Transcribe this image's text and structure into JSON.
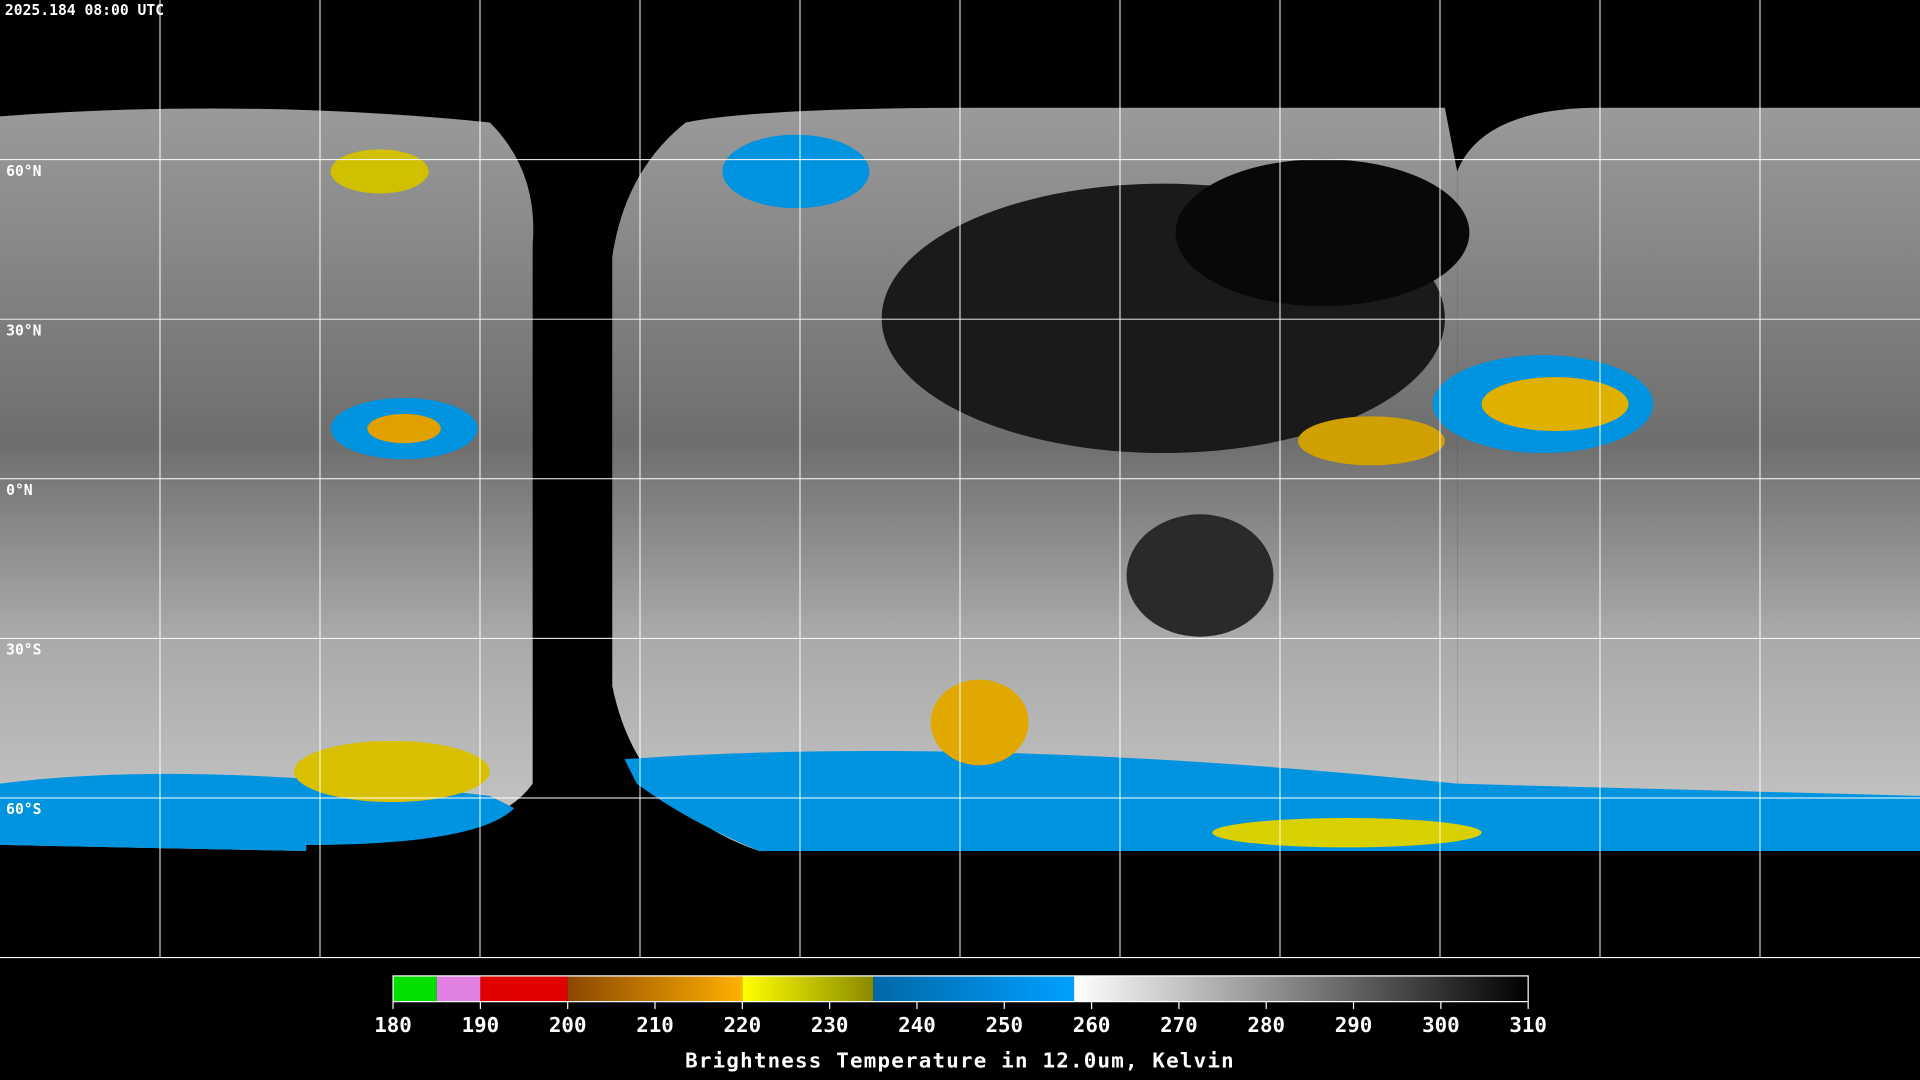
{
  "header": {
    "timestamp": "2025.184 08:00 UTC"
  },
  "map": {
    "latlim": [
      90,
      -90
    ],
    "latitudes": [
      {
        "value": 60,
        "label": "60°N"
      },
      {
        "value": 30,
        "label": "30°N"
      },
      {
        "value": 0,
        "label": "0°N"
      },
      {
        "value": -30,
        "label": "30°S"
      },
      {
        "value": -60,
        "label": "60°S"
      }
    ]
  },
  "colorbar": {
    "title": "Brightness Temperature in 12.0um, Kelvin",
    "range": [
      180,
      310
    ],
    "ticks": [
      180,
      190,
      200,
      210,
      220,
      230,
      240,
      250,
      260,
      270,
      280,
      290,
      300,
      310
    ],
    "segments": [
      {
        "from": 180,
        "to": 185,
        "colors": [
          "#00e000"
        ]
      },
      {
        "from": 185,
        "to": 190,
        "colors": [
          "#e080e0"
        ]
      },
      {
        "from": 190,
        "to": 200,
        "colors": [
          "#e00000"
        ]
      },
      {
        "from": 200,
        "to": 220,
        "colors": [
          "#8a4800",
          "#ffb000"
        ]
      },
      {
        "from": 220,
        "to": 235,
        "colors": [
          "#ffff00",
          "#8a8a00"
        ]
      },
      {
        "from": 235,
        "to": 258,
        "colors": [
          "#0068a8",
          "#00a0ff"
        ]
      },
      {
        "from": 258,
        "to": 310,
        "colors": [
          "#ffffff",
          "#000000"
        ]
      }
    ]
  }
}
